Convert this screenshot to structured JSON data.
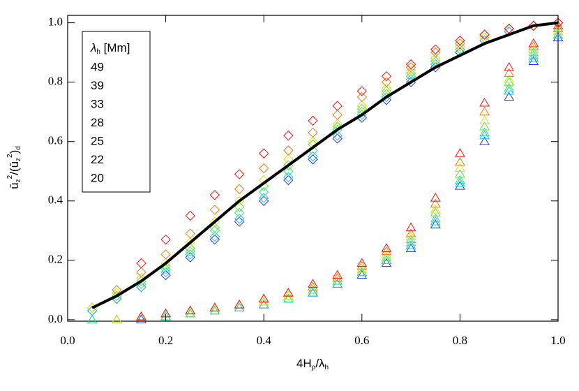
{
  "chart_data": {
    "type": "scatter",
    "x_label": [
      "4H",
      "ρ",
      "/λ",
      "h"
    ],
    "y_label": [
      "ū",
      "z",
      "2",
      "/(ū",
      "z",
      "2",
      ")",
      "d"
    ],
    "legend_title": [
      "λ",
      "h",
      " [Mm]"
    ],
    "xlim": [
      0,
      1
    ],
    "ylim": [
      -0.005,
      1.025
    ],
    "xticks": [
      {
        "value": 0,
        "label": "0.0"
      },
      {
        "value": 0.2,
        "label": "0.2"
      },
      {
        "value": 0.4,
        "label": "0.4"
      },
      {
        "value": 0.6,
        "label": "0.6"
      },
      {
        "value": 0.8,
        "label": "0.8"
      },
      {
        "value": 1,
        "label": "1.0"
      }
    ],
    "yticks": [
      {
        "value": 0,
        "label": "0.0"
      },
      {
        "value": 0.2,
        "label": "0.2"
      },
      {
        "value": 0.4,
        "label": "0.4"
      },
      {
        "value": 0.6,
        "label": "0.6"
      },
      {
        "value": 0.8,
        "label": "0.8"
      },
      {
        "value": 1,
        "label": "1.0"
      }
    ],
    "x": [
      0.05,
      0.1,
      0.15,
      0.2,
      0.25,
      0.3,
      0.35,
      0.4,
      0.45,
      0.5,
      0.55,
      0.6,
      0.65,
      0.7,
      0.75,
      0.8,
      0.85,
      0.9,
      0.95,
      1.0
    ],
    "series": [
      {
        "name": "49",
        "color": "#2233ee",
        "diamond_values": [
          0.03,
          0.07,
          0.11,
          0.15,
          0.21,
          0.27,
          0.33,
          0.4,
          0.47,
          0.54,
          0.61,
          0.68,
          0.74,
          0.8,
          0.85,
          0.9,
          0.94,
          0.97,
          0.99,
          1.0
        ],
        "triangle_values": [
          null,
          0,
          0,
          0.01,
          0.02,
          0.03,
          0.04,
          0.05,
          0.07,
          0.09,
          0.12,
          0.15,
          0.19,
          0.24,
          0.32,
          0.45,
          0.6,
          0.75,
          0.87,
          0.95
        ]
      },
      {
        "name": "39",
        "color": "#22bbee",
        "diamond_values": [
          0.03,
          0.07,
          0.11,
          0.16,
          0.22,
          0.28,
          0.34,
          0.41,
          0.48,
          0.55,
          0.62,
          0.69,
          0.75,
          0.81,
          0.86,
          0.91,
          0.94,
          0.97,
          0.99,
          1.0
        ],
        "triangle_values": [
          0,
          0,
          0.01,
          0.01,
          0.02,
          0.03,
          0.04,
          0.05,
          0.07,
          0.09,
          0.12,
          0.16,
          0.2,
          0.25,
          0.33,
          0.46,
          0.62,
          0.77,
          0.88,
          0.96
        ]
      },
      {
        "name": "33",
        "color": "#22e890",
        "diamond_values": [
          0.04,
          0.08,
          0.12,
          0.17,
          0.23,
          0.3,
          0.36,
          0.43,
          0.5,
          0.57,
          0.64,
          0.7,
          0.76,
          0.82,
          0.87,
          0.91,
          0.95,
          0.98,
          0.99,
          1.0
        ],
        "triangle_values": [
          0,
          0,
          0.01,
          0.01,
          0.02,
          0.03,
          0.04,
          0.06,
          0.07,
          0.1,
          0.13,
          0.16,
          0.2,
          0.26,
          0.34,
          0.47,
          0.63,
          0.78,
          0.89,
          0.96
        ]
      },
      {
        "name": "28",
        "color": "#55ee22",
        "diamond_values": [
          0.04,
          0.08,
          0.13,
          0.18,
          0.24,
          0.31,
          0.38,
          0.45,
          0.52,
          0.59,
          0.65,
          0.71,
          0.77,
          0.83,
          0.88,
          0.92,
          0.95,
          0.98,
          0.99,
          1.0
        ],
        "triangle_values": [
          null,
          0,
          0.01,
          0.02,
          0.02,
          0.03,
          0.05,
          0.06,
          0.08,
          0.1,
          0.13,
          0.17,
          0.21,
          0.27,
          0.36,
          0.49,
          0.65,
          0.8,
          0.9,
          0.97
        ]
      },
      {
        "name": "25",
        "color": "#e0e010",
        "diamond_values": [
          0.04,
          0.09,
          0.14,
          0.19,
          0.26,
          0.33,
          0.4,
          0.47,
          0.54,
          0.6,
          0.66,
          0.72,
          0.78,
          0.84,
          0.88,
          0.92,
          0.95,
          0.98,
          0.99,
          1.0
        ],
        "triangle_values": [
          null,
          0,
          0.01,
          0.02,
          0.03,
          0.04,
          0.05,
          0.06,
          0.08,
          0.11,
          0.14,
          0.17,
          0.22,
          0.28,
          0.37,
          0.51,
          0.67,
          0.81,
          0.91,
          0.97
        ]
      },
      {
        "name": "22",
        "color": "#f07a10",
        "diamond_values": [
          null,
          0.1,
          0.16,
          0.22,
          0.29,
          0.37,
          0.44,
          0.51,
          0.57,
          0.63,
          0.69,
          0.75,
          0.8,
          0.85,
          0.9,
          0.93,
          0.96,
          0.98,
          0.99,
          1.0
        ],
        "triangle_values": [
          null,
          null,
          0.01,
          0.02,
          0.03,
          0.04,
          0.05,
          0.07,
          0.09,
          0.11,
          0.14,
          0.18,
          0.23,
          0.29,
          0.39,
          0.53,
          0.7,
          0.83,
          0.92,
          0.98
        ]
      },
      {
        "name": "20",
        "color": "#ee1111",
        "diamond_values": [
          null,
          null,
          0.19,
          0.27,
          0.35,
          0.42,
          0.49,
          0.56,
          0.62,
          0.67,
          0.72,
          0.77,
          0.82,
          0.86,
          0.91,
          0.94,
          0.96,
          0.98,
          0.99,
          1.0
        ],
        "triangle_values": [
          null,
          null,
          0.01,
          0.02,
          0.03,
          0.04,
          0.05,
          0.07,
          0.09,
          0.12,
          0.15,
          0.19,
          0.24,
          0.31,
          0.41,
          0.56,
          0.73,
          0.85,
          0.93,
          0.99
        ]
      }
    ],
    "line": {
      "color": "#000000",
      "values": [
        0.04,
        0.08,
        0.13,
        0.19,
        0.26,
        0.33,
        0.4,
        0.46,
        0.52,
        0.58,
        0.64,
        0.69,
        0.75,
        0.8,
        0.85,
        0.89,
        0.93,
        0.96,
        0.99,
        1.0
      ]
    }
  }
}
